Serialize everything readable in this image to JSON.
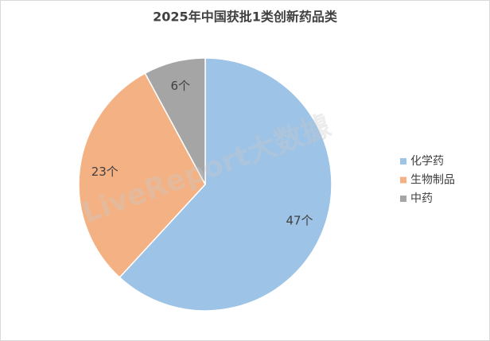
{
  "chart_data": {
    "type": "pie",
    "title": "2025年中国获批1类创新药品类",
    "categories": [
      "化学药",
      "生物制品",
      "中药"
    ],
    "values": [
      47,
      23,
      6
    ],
    "value_labels": [
      "47个",
      "23个",
      "6个"
    ],
    "colors": [
      "#9dc3e6",
      "#f4b183",
      "#a5a5a5"
    ],
    "legend": "right",
    "watermark": "LiveReport大数據"
  }
}
